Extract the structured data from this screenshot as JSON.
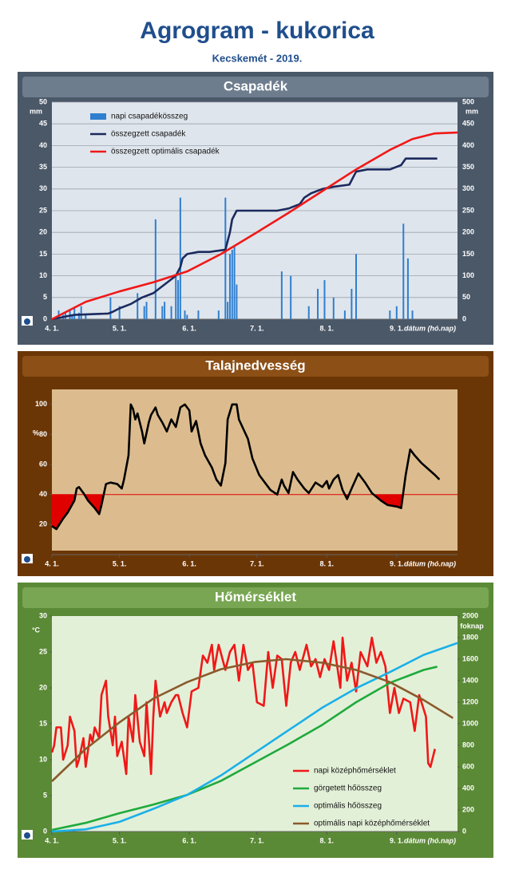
{
  "title": "Agrogram - kukorica",
  "subtitle": "Kecskemét - 2019.",
  "chart_data": [
    {
      "type": "combo",
      "title": "Csapadék",
      "xlabel": "dátum (hó.nap)",
      "ylabel": "mm",
      "y2label": "mm",
      "grid": true,
      "legend": "top-left",
      "xlim": [
        0,
        180
      ],
      "xticks": [
        {
          "value": 0,
          "label": "4. 1."
        },
        {
          "value": 30,
          "label": "5. 1."
        },
        {
          "value": 61,
          "label": "6. 1."
        },
        {
          "value": 91,
          "label": "7. 1."
        },
        {
          "value": 122,
          "label": "8. 1."
        },
        {
          "value": 153,
          "label": "9. 1."
        }
      ],
      "ylim": [
        0,
        50
      ],
      "yticks": [
        0,
        5,
        10,
        15,
        20,
        25,
        30,
        35,
        40,
        45,
        50
      ],
      "y2lim": [
        0,
        500
      ],
      "y2ticks": [
        0,
        50,
        100,
        150,
        200,
        250,
        300,
        350,
        400,
        450,
        500
      ],
      "series": [
        {
          "name": "napi csapadékösszeg",
          "type": "bar",
          "color": "#2f7fcf",
          "axis": "y",
          "x": [
            3,
            5,
            6,
            8,
            9,
            10,
            12,
            13,
            15,
            26,
            30,
            38,
            41,
            42,
            46,
            49,
            50,
            53,
            55,
            56,
            57,
            59,
            60,
            65,
            74,
            77,
            78,
            79,
            80,
            81,
            82,
            102,
            106,
            114,
            118,
            121,
            125,
            130,
            133,
            135,
            150,
            153,
            156,
            158,
            160
          ],
          "values": [
            2,
            1,
            1.5,
            2,
            1,
            2.5,
            1.5,
            3,
            1,
            5,
            3,
            6,
            3,
            4,
            23,
            3,
            4,
            3,
            10,
            9,
            28,
            2,
            1,
            2,
            2,
            28,
            4,
            15,
            16,
            17,
            8,
            11,
            10,
            3,
            7,
            9,
            5,
            2,
            7,
            15,
            2,
            3,
            22,
            14,
            2
          ]
        },
        {
          "name": "összegzett csapadék",
          "type": "line",
          "color": "#1b2a5e",
          "axis": "y2",
          "x": [
            0,
            5,
            10,
            20,
            25,
            27,
            30,
            35,
            40,
            45,
            50,
            55,
            57,
            58,
            60,
            65,
            70,
            77,
            79,
            80,
            82,
            100,
            105,
            110,
            112,
            115,
            120,
            125,
            132,
            135,
            140,
            150,
            155,
            157,
            171
          ],
          "values": [
            0,
            5,
            10,
            12,
            13,
            17,
            25,
            35,
            50,
            60,
            80,
            100,
            120,
            140,
            150,
            155,
            155,
            160,
            200,
            230,
            250,
            250,
            255,
            265,
            280,
            290,
            300,
            305,
            310,
            340,
            345,
            345,
            355,
            370,
            370
          ]
        },
        {
          "name": "összegzett optimális csapadék",
          "type": "line",
          "color": "#f01818",
          "axis": "y2",
          "x": [
            0,
            15,
            30,
            45,
            60,
            75,
            90,
            105,
            120,
            135,
            150,
            160,
            170,
            180
          ],
          "values": [
            0,
            40,
            64,
            85,
            110,
            150,
            197,
            245,
            295,
            345,
            390,
            415,
            428,
            430
          ]
        }
      ]
    },
    {
      "type": "line",
      "title": "Talajnedvesség",
      "xlabel": "dátum (hó.nap)",
      "ylabel": "%",
      "threshold": 40,
      "threshold_color": "#e00000",
      "xlim": [
        0,
        180
      ],
      "xticks": [
        {
          "value": 0,
          "label": "4. 1."
        },
        {
          "value": 30,
          "label": "5. 1."
        },
        {
          "value": 61,
          "label": "6. 1."
        },
        {
          "value": 91,
          "label": "7. 1."
        },
        {
          "value": 122,
          "label": "8. 1."
        },
        {
          "value": 153,
          "label": "9. 1."
        }
      ],
      "ylim": [
        0,
        110
      ],
      "yticks": [
        20,
        40,
        60,
        80,
        100
      ],
      "series": [
        {
          "type": "line",
          "color": "#000000",
          "axis": "y",
          "x": [
            0,
            2,
            5,
            7,
            10,
            11,
            12,
            14,
            16,
            19,
            21,
            22,
            24,
            26,
            29,
            31,
            32,
            34,
            35,
            36,
            37,
            38,
            40,
            41,
            43,
            44,
            46,
            47,
            49,
            51,
            53,
            55,
            57,
            59,
            61,
            62,
            64,
            66,
            68,
            71,
            73,
            75,
            77,
            78,
            80,
            82,
            83,
            87,
            89,
            92,
            95,
            97,
            100,
            102,
            103,
            105,
            107,
            109,
            112,
            114,
            117,
            120,
            122,
            123,
            125,
            127,
            129,
            131,
            133,
            136,
            139,
            142,
            146,
            149,
            153,
            155,
            157,
            159,
            161,
            164,
            167,
            170,
            172
          ],
          "values": [
            19,
            17,
            24,
            28,
            36,
            44,
            45,
            41,
            36,
            31,
            27,
            33,
            47,
            48,
            47,
            44,
            50,
            66,
            100,
            97,
            90,
            94,
            82,
            74,
            88,
            93,
            98,
            93,
            88,
            82,
            90,
            85,
            98,
            100,
            96,
            82,
            89,
            74,
            66,
            58,
            50,
            46,
            61,
            90,
            100,
            100,
            90,
            77,
            64,
            53,
            47,
            43,
            40,
            50,
            46,
            41,
            55,
            50,
            44,
            41,
            48,
            45,
            49,
            44,
            50,
            53,
            43,
            37,
            44,
            54,
            48,
            41,
            36,
            33,
            32,
            31,
            53,
            70,
            66,
            61,
            57,
            53,
            50
          ]
        }
      ]
    },
    {
      "type": "line",
      "title": "Hőmérséklet",
      "xlabel": "dátum (hó.nap)",
      "ylabel": "°C",
      "y2label": "foknap",
      "legend": "bottom-right",
      "xlim": [
        0,
        180
      ],
      "xticks": [
        {
          "value": 0,
          "label": "4. 1."
        },
        {
          "value": 30,
          "label": "5. 1."
        },
        {
          "value": 61,
          "label": "6. 1."
        },
        {
          "value": 91,
          "label": "7. 1."
        },
        {
          "value": 122,
          "label": "8. 1."
        },
        {
          "value": 153,
          "label": "9. 1."
        }
      ],
      "ylim": [
        0,
        30
      ],
      "yticks": [
        0,
        5,
        10,
        15,
        20,
        25,
        30
      ],
      "y2lim": [
        0,
        2000
      ],
      "y2ticks": [
        0,
        200,
        400,
        600,
        800,
        1000,
        1200,
        1400,
        1600,
        1800,
        2000
      ],
      "series": [
        {
          "name": "napi középhőmérséklet",
          "type": "line",
          "color": "#f01818",
          "axis": "y",
          "x": [
            0,
            1,
            2,
            4,
            5,
            7,
            8,
            10,
            11,
            12,
            14,
            15,
            17,
            18,
            19,
            21,
            22,
            24,
            25,
            27,
            28,
            29,
            31,
            33,
            34,
            36,
            37,
            39,
            41,
            42,
            44,
            45,
            46,
            48,
            50,
            51,
            53,
            55,
            56,
            58,
            60,
            62,
            65,
            67,
            69,
            71,
            72,
            74,
            77,
            79,
            81,
            83,
            85,
            87,
            89,
            91,
            94,
            96,
            98,
            100,
            102,
            104,
            106,
            108,
            110,
            113,
            115,
            117,
            119,
            121,
            123,
            125,
            128,
            129,
            131,
            133,
            135,
            137,
            140,
            142,
            144,
            146,
            148,
            150,
            152,
            154,
            156,
            159,
            161,
            163,
            164,
            166,
            167,
            168,
            170
          ],
          "values": [
            11,
            12,
            14.5,
            14.5,
            10,
            12,
            16,
            14,
            9,
            10,
            13,
            9,
            13.5,
            12.5,
            14.5,
            13,
            19,
            21,
            16,
            12,
            16,
            10.5,
            12.5,
            8,
            16,
            12.5,
            19,
            12.5,
            10.5,
            18,
            8,
            16,
            21,
            16,
            18,
            16.5,
            18,
            19,
            19,
            16.5,
            14.5,
            19.5,
            20,
            24.5,
            23.5,
            26,
            22.5,
            26,
            22.5,
            25,
            26,
            21,
            26,
            22.5,
            23.5,
            18,
            17.5,
            25,
            20,
            24.5,
            24,
            17.5,
            23.5,
            25,
            22.5,
            26,
            23,
            24,
            21.5,
            24,
            22.5,
            26.5,
            20,
            27,
            21,
            23.5,
            19.5,
            25,
            23,
            27,
            23.5,
            25,
            23,
            16.5,
            20,
            16.5,
            18.5,
            18,
            14,
            19,
            18,
            16,
            9.5,
            9,
            11.5
          ]
        },
        {
          "name": "görgetett hőösszeg",
          "type": "line",
          "color": "#1faa3c",
          "axis": "y2",
          "x": [
            0,
            15,
            30,
            45,
            60,
            75,
            90,
            105,
            120,
            135,
            150,
            165,
            171
          ],
          "values": [
            15,
            80,
            170,
            250,
            340,
            470,
            640,
            810,
            990,
            1200,
            1380,
            1500,
            1530
          ]
        },
        {
          "name": "optimális hőösszeg",
          "type": "line",
          "color": "#1ab0e8",
          "axis": "y2",
          "x": [
            0,
            15,
            30,
            45,
            60,
            75,
            90,
            105,
            120,
            135,
            150,
            165,
            180
          ],
          "values": [
            0,
            20,
            90,
            210,
            340,
            520,
            730,
            940,
            1150,
            1330,
            1480,
            1640,
            1750
          ]
        },
        {
          "name": "optimális napi középhőmérséklet",
          "type": "line",
          "color": "#8b5a2b",
          "axis": "y",
          "x": [
            0,
            15,
            30,
            45,
            60,
            75,
            90,
            104,
            120,
            135,
            150,
            165,
            178
          ],
          "values": [
            7,
            11.5,
            15.2,
            18.5,
            20.8,
            22.6,
            23.6,
            24,
            23.5,
            22.5,
            20.8,
            18.3,
            15.8
          ]
        }
      ]
    }
  ]
}
